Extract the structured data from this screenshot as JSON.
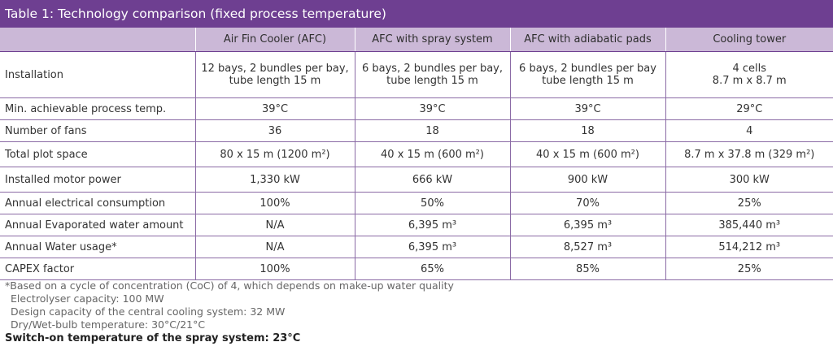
{
  "title": "Table 1: Technology comparison (fixed process temperature)",
  "table": {
    "headers": [
      "",
      "Air Fin Cooler (AFC)",
      "AFC with spray system",
      "AFC with adiabatic pads",
      "Cooling tower"
    ],
    "rows": [
      {
        "label": "Installation",
        "cells": [
          [
            "12 bays, 2 bundles per bay,",
            "tube length 15 m"
          ],
          [
            "6 bays, 2 bundles per bay,",
            "tube length 15 m"
          ],
          [
            "6 bays, 2 bundles per bay",
            "tube length 15 m"
          ],
          [
            "4 cells",
            "8.7 m x 8.7 m"
          ]
        ]
      },
      {
        "label": "Min. achievable process temp.",
        "cells": [
          "39°C",
          "39°C",
          "39°C",
          "29°C"
        ]
      },
      {
        "label": "Number of fans",
        "cells": [
          "36",
          "18",
          "18",
          "4"
        ]
      },
      {
        "label": "Total plot space",
        "cells": [
          "80 x 15 m (1200 m²)",
          "40 x 15 m (600 m²)",
          "40 x 15 m (600 m²)",
          "8.7 m x 37.8 m (329 m²)"
        ]
      },
      {
        "label": "Installed motor power",
        "cells": [
          "1,330 kW",
          "666 kW",
          "900 kW",
          "300 kW"
        ]
      },
      {
        "label": "Annual electrical consumption",
        "cells": [
          "100%",
          "50%",
          "70%",
          "25%"
        ]
      },
      {
        "label": "Annual Evaporated water amount",
        "cells": [
          "N/A",
          "6,395 m³",
          "6,395 m³",
          "385,440 m³"
        ]
      },
      {
        "label": "Annual Water usage*",
        "cells": [
          "N/A",
          "6,395 m³",
          "8,527 m³",
          "514,212 m³"
        ]
      },
      {
        "label": "CAPEX factor",
        "cells": [
          "100%",
          "65%",
          "85%",
          "25%"
        ]
      }
    ]
  },
  "footnotes": {
    "note": "*Based on a cycle of concentration (CoC) of 4, which depends on make-up water quality",
    "electrolyser": "Electrolyser capacity: 100 MW",
    "design_capacity": "Design capacity of the central cooling system: 32 MW",
    "temperature": "Dry/Wet-bulb temperature: 30°C/21°C",
    "switch_on": "Switch-on temperature of the spray system: 23°C"
  },
  "colors": {
    "title_bar": "#6e3f91",
    "header_row": "#cbb8d7",
    "grid_lines": "#8a6aa5"
  }
}
